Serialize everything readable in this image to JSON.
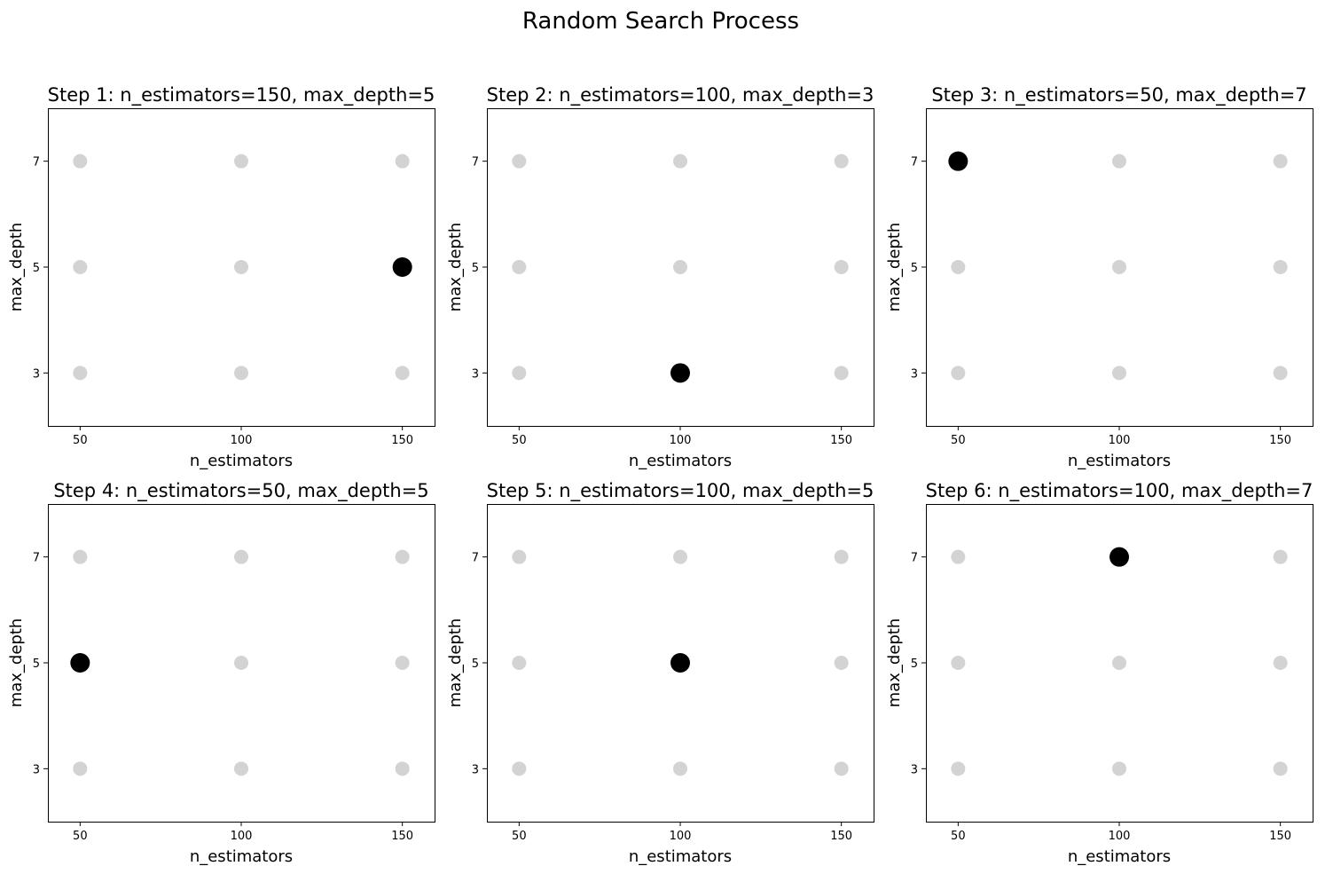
{
  "figure": {
    "title": "Random Search Process"
  },
  "colors": {
    "grid_point": "#d3d3d3",
    "selected_point": "#000000",
    "axes": "#000000",
    "background": "#ffffff"
  },
  "chart_data": [
    {
      "type": "scatter",
      "title": "Step 1: n_estimators=150, max_depth=5",
      "xlabel": "n_estimators",
      "ylabel": "max_depth",
      "xticks": [
        50,
        100,
        150
      ],
      "yticks": [
        3,
        5,
        7
      ],
      "xlim": [
        40,
        160
      ],
      "ylim": [
        2,
        8
      ],
      "grid_points": {
        "x": [
          50,
          100,
          150
        ],
        "y": [
          3,
          5,
          7
        ]
      },
      "selected": {
        "n_estimators": 150,
        "max_depth": 5
      }
    },
    {
      "type": "scatter",
      "title": "Step 2: n_estimators=100, max_depth=3",
      "xlabel": "n_estimators",
      "ylabel": "max_depth",
      "xticks": [
        50,
        100,
        150
      ],
      "yticks": [
        3,
        5,
        7
      ],
      "xlim": [
        40,
        160
      ],
      "ylim": [
        2,
        8
      ],
      "grid_points": {
        "x": [
          50,
          100,
          150
        ],
        "y": [
          3,
          5,
          7
        ]
      },
      "selected": {
        "n_estimators": 100,
        "max_depth": 3
      }
    },
    {
      "type": "scatter",
      "title": "Step 3: n_estimators=50, max_depth=7",
      "xlabel": "n_estimators",
      "ylabel": "max_depth",
      "xticks": [
        50,
        100,
        150
      ],
      "yticks": [
        3,
        5,
        7
      ],
      "xlim": [
        40,
        160
      ],
      "ylim": [
        2,
        8
      ],
      "grid_points": {
        "x": [
          50,
          100,
          150
        ],
        "y": [
          3,
          5,
          7
        ]
      },
      "selected": {
        "n_estimators": 50,
        "max_depth": 7
      }
    },
    {
      "type": "scatter",
      "title": "Step 4: n_estimators=50, max_depth=5",
      "xlabel": "n_estimators",
      "ylabel": "max_depth",
      "xticks": [
        50,
        100,
        150
      ],
      "yticks": [
        3,
        5,
        7
      ],
      "xlim": [
        40,
        160
      ],
      "ylim": [
        2,
        8
      ],
      "grid_points": {
        "x": [
          50,
          100,
          150
        ],
        "y": [
          3,
          5,
          7
        ]
      },
      "selected": {
        "n_estimators": 50,
        "max_depth": 5
      }
    },
    {
      "type": "scatter",
      "title": "Step 5: n_estimators=100, max_depth=5",
      "xlabel": "n_estimators",
      "ylabel": "max_depth",
      "xticks": [
        50,
        100,
        150
      ],
      "yticks": [
        3,
        5,
        7
      ],
      "xlim": [
        40,
        160
      ],
      "ylim": [
        2,
        8
      ],
      "grid_points": {
        "x": [
          50,
          100,
          150
        ],
        "y": [
          3,
          5,
          7
        ]
      },
      "selected": {
        "n_estimators": 100,
        "max_depth": 5
      }
    },
    {
      "type": "scatter",
      "title": "Step 6: n_estimators=100, max_depth=7",
      "xlabel": "n_estimators",
      "ylabel": "max_depth",
      "xticks": [
        50,
        100,
        150
      ],
      "yticks": [
        3,
        5,
        7
      ],
      "xlim": [
        40,
        160
      ],
      "ylim": [
        2,
        8
      ],
      "grid_points": {
        "x": [
          50,
          100,
          150
        ],
        "y": [
          3,
          5,
          7
        ]
      },
      "selected": {
        "n_estimators": 100,
        "max_depth": 7
      }
    }
  ]
}
